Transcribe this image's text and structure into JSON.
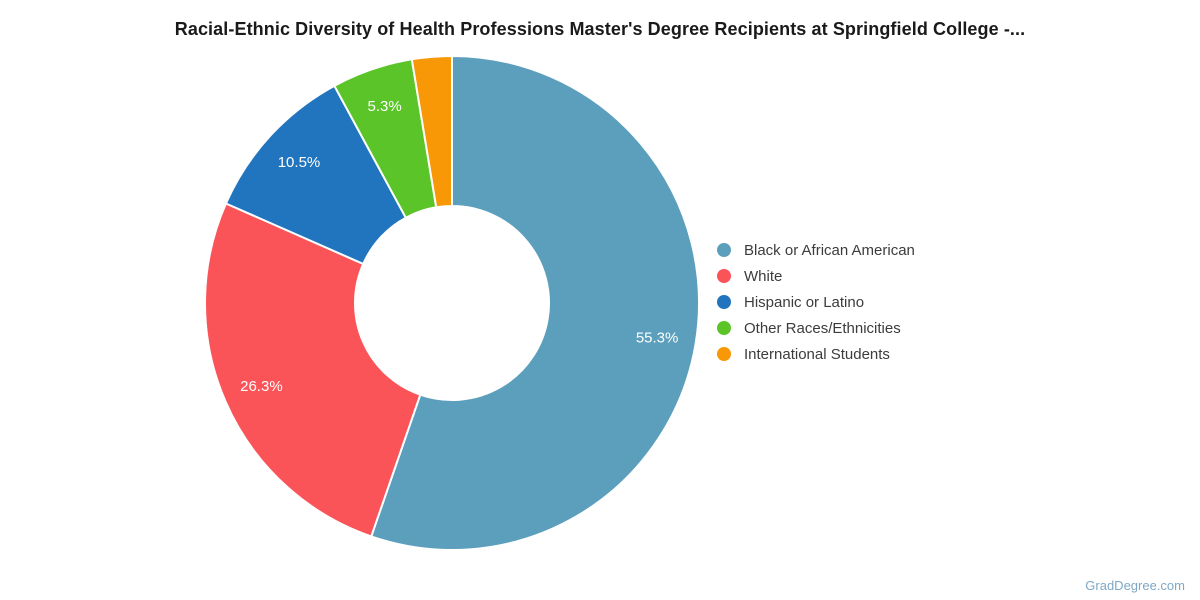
{
  "page": {
    "watermark": "GradDegree.com"
  },
  "colors": {
    "background": "#ffffff",
    "title_text": "#1a1a1a",
    "legend_text": "#3c3c3c",
    "slice_label_text": "#ffffff",
    "slice_border": "#ffffff",
    "watermark_text": "#7fa8c6"
  },
  "chart_data": {
    "type": "pie",
    "subtype": "donut",
    "title": "Racial-Ethnic Diversity of Health Professions Master's Degree Recipients at Springfield College -...",
    "legend_position": "right",
    "direction": "clockwise",
    "start_angle_deg": 0,
    "total": 100,
    "series": [
      {
        "name": "Black or African American",
        "value": 55.3,
        "label": "55.3%",
        "label_visible": true,
        "color": "#5b9fbd"
      },
      {
        "name": "White",
        "value": 26.3,
        "label": "26.3%",
        "label_visible": true,
        "color": "#fb5458"
      },
      {
        "name": "Hispanic or Latino",
        "value": 10.5,
        "label": "10.5%",
        "label_visible": true,
        "color": "#2174be"
      },
      {
        "name": "Other Races/Ethnicities",
        "value": 5.3,
        "label": "5.3%",
        "label_visible": true,
        "color": "#5ac428"
      },
      {
        "name": "International Students",
        "value": 2.6,
        "label": "2.6%",
        "label_visible": false,
        "color": "#f89806"
      }
    ]
  }
}
